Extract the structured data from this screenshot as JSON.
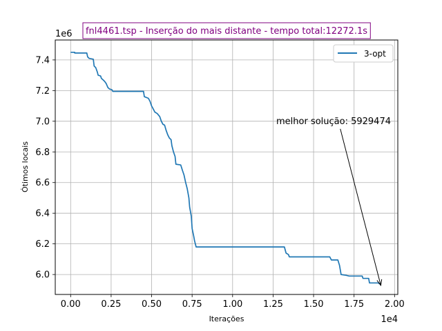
{
  "chart_data": {
    "type": "line",
    "title": "fnl4461.tsp - Inserção do mais distante - tempo total:12272.1s",
    "title_color": "#800080",
    "xlabel": "Iterações",
    "ylabel": "Ótimos locais",
    "x_offset_label": "1e4",
    "y_offset_label": "1e6",
    "xlim": [
      -950,
      20200
    ],
    "ylim": [
      5870000,
      7530000
    ],
    "x_ticks": [
      0,
      2500,
      5000,
      7500,
      10000,
      12500,
      15000,
      17500,
      20000
    ],
    "x_tick_labels": [
      "0.00",
      "0.25",
      "0.50",
      "0.75",
      "1.00",
      "1.25",
      "1.50",
      "1.75",
      "2.00"
    ],
    "y_ticks": [
      6000000,
      6200000,
      6400000,
      6600000,
      6800000,
      7000000,
      7200000,
      7400000
    ],
    "y_tick_labels": [
      "6.0",
      "6.2",
      "6.4",
      "6.6",
      "6.8",
      "7.0",
      "7.2",
      "7.4"
    ],
    "grid": true,
    "legend_position": "top-right",
    "series": [
      {
        "name": "3-opt",
        "color": "#1f77b4",
        "points": [
          [
            0,
            7450000
          ],
          [
            250,
            7450000
          ],
          [
            250,
            7445000
          ],
          [
            1000,
            7445000
          ],
          [
            1050,
            7420000
          ],
          [
            1150,
            7410000
          ],
          [
            1400,
            7405000
          ],
          [
            1450,
            7360000
          ],
          [
            1550,
            7350000
          ],
          [
            1650,
            7320000
          ],
          [
            1700,
            7300000
          ],
          [
            1850,
            7295000
          ],
          [
            1900,
            7280000
          ],
          [
            2000,
            7270000
          ],
          [
            2100,
            7260000
          ],
          [
            2200,
            7245000
          ],
          [
            2300,
            7220000
          ],
          [
            2400,
            7210000
          ],
          [
            2550,
            7205000
          ],
          [
            2600,
            7195000
          ],
          [
            4500,
            7195000
          ],
          [
            4550,
            7160000
          ],
          [
            4800,
            7150000
          ],
          [
            4900,
            7130000
          ],
          [
            5000,
            7100000
          ],
          [
            5100,
            7080000
          ],
          [
            5200,
            7060000
          ],
          [
            5350,
            7050000
          ],
          [
            5500,
            7030000
          ],
          [
            5600,
            7000000
          ],
          [
            5700,
            6980000
          ],
          [
            5800,
            6975000
          ],
          [
            5900,
            6940000
          ],
          [
            6000,
            6910000
          ],
          [
            6100,
            6890000
          ],
          [
            6200,
            6880000
          ],
          [
            6250,
            6840000
          ],
          [
            6350,
            6800000
          ],
          [
            6450,
            6770000
          ],
          [
            6500,
            6720000
          ],
          [
            6800,
            6715000
          ],
          [
            6900,
            6680000
          ],
          [
            7000,
            6650000
          ],
          [
            7100,
            6600000
          ],
          [
            7200,
            6560000
          ],
          [
            7300,
            6500000
          ],
          [
            7350,
            6440000
          ],
          [
            7450,
            6380000
          ],
          [
            7500,
            6300000
          ],
          [
            7600,
            6250000
          ],
          [
            7650,
            6220000
          ],
          [
            7750,
            6180000
          ],
          [
            13200,
            6180000
          ],
          [
            13300,
            6140000
          ],
          [
            13450,
            6130000
          ],
          [
            13500,
            6115000
          ],
          [
            16000,
            6115000
          ],
          [
            16100,
            6095000
          ],
          [
            16500,
            6095000
          ],
          [
            16600,
            6060000
          ],
          [
            16700,
            6000000
          ],
          [
            17000,
            5995000
          ],
          [
            17200,
            5990000
          ],
          [
            18000,
            5990000
          ],
          [
            18050,
            5975000
          ],
          [
            18400,
            5975000
          ],
          [
            18450,
            5945000
          ],
          [
            19000,
            5945000
          ],
          [
            19050,
            5940000
          ],
          [
            19100,
            5940000
          ],
          [
            19150,
            5929474
          ]
        ]
      }
    ],
    "annotation": {
      "text": "melhor solução: 5929474",
      "target": [
        19150,
        5929474
      ],
      "text_anchor": [
        16650,
        6950000
      ]
    }
  }
}
